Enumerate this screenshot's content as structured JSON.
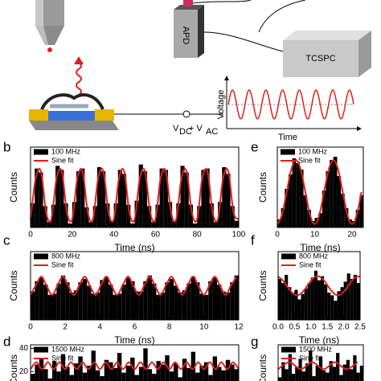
{
  "schematic": {
    "detector": "APD",
    "counter": "TCSPC",
    "inset_ylabel": "Voltage",
    "inset_xlabel": "Time",
    "source_label": [
      "V",
      "DC",
      "+ V",
      "AC"
    ]
  },
  "chart_data": [
    {
      "type": "bar",
      "panel": "b",
      "xlabel": "Time (ns)",
      "ylabel": "Counts",
      "xlim": [
        0,
        100
      ],
      "ylim": [
        0,
        60
      ],
      "xticks": [
        0,
        20,
        40,
        60,
        80,
        100
      ],
      "series": [
        {
          "name": "100 MHz",
          "type": "bar",
          "color": "#000000",
          "x": [
            1,
            3,
            5,
            7,
            9,
            11,
            13,
            15,
            17,
            19,
            21,
            23,
            25,
            27,
            29,
            31,
            33,
            35,
            37,
            39,
            41,
            43,
            45,
            47,
            49,
            51,
            53,
            55,
            57,
            59,
            61,
            63,
            65,
            67,
            69,
            71,
            73,
            75,
            77,
            79,
            81,
            83,
            85,
            87,
            89,
            91,
            93,
            95,
            97,
            99
          ],
          "values": [
            18,
            44,
            41,
            16,
            4,
            17,
            46,
            43,
            18,
            3,
            19,
            42,
            44,
            15,
            4,
            16,
            45,
            42,
            18,
            5,
            18,
            43,
            40,
            17,
            3,
            20,
            47,
            42,
            16,
            4,
            17,
            44,
            43,
            19,
            5,
            18,
            46,
            41,
            17,
            3,
            16,
            43,
            44,
            18,
            4,
            19,
            45,
            40,
            16,
            5
          ]
        },
        {
          "name": "Sine fit",
          "type": "line",
          "color": "#e0201c",
          "x": [
            0,
            2.5,
            5,
            7.5,
            10,
            12.5,
            15,
            17.5,
            20,
            22.5,
            25,
            27.5,
            30,
            32.5,
            35,
            37.5,
            40,
            42.5,
            45,
            47.5,
            50,
            52.5,
            55,
            57.5,
            60,
            62.5,
            65,
            67.5,
            70,
            72.5,
            75,
            77.5,
            80,
            82.5,
            85,
            87.5,
            90,
            92.5,
            95,
            97.5,
            100
          ],
          "values": [
            6.2,
            36.9,
            41.8,
            11.1,
            6.2,
            36.9,
            41.8,
            11.1,
            6.2,
            36.9,
            41.8,
            11.1,
            6.2,
            36.9,
            41.8,
            11.1,
            6.2,
            36.9,
            41.8,
            11.1,
            6.2,
            36.9,
            41.8,
            11.1,
            6.2,
            36.9,
            41.8,
            11.1,
            6.2,
            36.9,
            41.8,
            11.1,
            6.2,
            36.9,
            41.8,
            11.1,
            6.2,
            36.9,
            41.8,
            11.1,
            6.2
          ]
        }
      ]
    },
    {
      "type": "bar",
      "panel": "c",
      "xlabel": "Time (ns)",
      "ylabel": "Counts",
      "xlim": [
        0,
        12
      ],
      "ylim": [
        0,
        60
      ],
      "xticks": [
        0,
        2,
        4,
        6,
        8,
        10,
        12
      ],
      "series": [
        {
          "name": "800 MHz",
          "type": "bar",
          "color": "#000000",
          "x": [
            0.125,
            0.375,
            0.625,
            0.875,
            1.125,
            1.375,
            1.625,
            1.875,
            2.125,
            2.375,
            2.625,
            2.875,
            3.125,
            3.375,
            3.625,
            3.875,
            4.125,
            4.375,
            4.625,
            4.875,
            5.125,
            5.375,
            5.625,
            5.875,
            6.125,
            6.375,
            6.625,
            6.875,
            7.125,
            7.375,
            7.625,
            7.875,
            8.125,
            8.375,
            8.625,
            8.875,
            9.125,
            9.375,
            9.625,
            9.875,
            10.125,
            10.375,
            10.625,
            10.875,
            11.125,
            11.375,
            11.625,
            11.875
          ],
          "values": [
            25,
            34,
            37,
            31,
            22,
            23,
            32,
            39,
            33,
            24,
            26,
            33,
            36,
            30,
            23,
            24,
            35,
            38,
            31,
            22,
            23,
            31,
            37,
            34,
            25,
            25,
            34,
            39,
            32,
            22,
            24,
            33,
            36,
            30,
            24,
            26,
            32,
            38,
            33,
            23,
            22,
            34,
            37,
            31,
            25,
            24,
            33,
            39
          ]
        },
        {
          "name": "Sine fit",
          "type": "line",
          "color": "#e0201c",
          "x": [
            0,
            0.3125,
            0.625,
            0.9375,
            1.25,
            1.5625,
            1.875,
            2.1875,
            2.5,
            2.8125,
            3.125,
            3.4375,
            3.75,
            4.0625,
            4.375,
            4.6875,
            5,
            5.3125,
            5.625,
            5.9375,
            6.25,
            6.5625,
            6.875,
            7.1875,
            7.5,
            7.8125,
            8.125,
            8.4375,
            8.75,
            9.0625,
            9.375,
            9.6875,
            10,
            10.3125,
            10.625,
            10.9375,
            11.25,
            11.5625,
            11.875
          ],
          "values": [
            22,
            30.5,
            38,
            29.5,
            22,
            30.5,
            38,
            29.5,
            22,
            30.5,
            38,
            29.5,
            22,
            30.5,
            38,
            29.5,
            22,
            30.5,
            38,
            29.5,
            22,
            30.5,
            38,
            29.5,
            22,
            30.5,
            38,
            29.5,
            22,
            30.5,
            38,
            29.5,
            22,
            30.5,
            38,
            29.5,
            22,
            30.5,
            38
          ]
        }
      ]
    },
    {
      "type": "bar",
      "panel": "d",
      "ylabel": "Counts",
      "xlim": [
        0,
        12
      ],
      "ylim": [
        0,
        43
      ],
      "yticks": [
        20,
        40
      ],
      "series": [
        {
          "name": "1500 MHz",
          "type": "bar",
          "color": "#000000",
          "x": [
            0.125,
            0.375,
            0.625,
            0.875,
            1.125,
            1.375,
            1.625,
            1.875,
            2.125,
            2.375,
            2.625,
            2.875,
            3.125,
            3.375,
            3.625,
            3.875,
            4.125,
            4.375,
            4.625,
            4.875,
            5.125,
            5.375,
            5.625,
            5.875,
            6.125,
            6.375,
            6.625,
            6.875,
            7.125,
            7.375,
            7.625,
            7.875,
            8.125,
            8.375,
            8.625,
            8.875,
            9.125,
            9.375,
            9.625,
            9.875,
            10.125,
            10.375,
            10.625,
            10.875,
            11.125,
            11.375,
            11.625,
            11.875
          ],
          "values": [
            18,
            26,
            31,
            22,
            14,
            29,
            20,
            35,
            24,
            17,
            27,
            33,
            19,
            25,
            38,
            21,
            16,
            30,
            28,
            23,
            36,
            19,
            25,
            32,
            17,
            24,
            40,
            22,
            18,
            29,
            26,
            34,
            20,
            27,
            15,
            31,
            23,
            37,
            19,
            25,
            28,
            17,
            33,
            24,
            21,
            30,
            26,
            22
          ]
        },
        {
          "name": "Sine fit",
          "type": "line",
          "color": "#e0201c",
          "x": [
            0,
            0.3333,
            0.6667,
            1,
            1.3333,
            1.6667,
            2,
            2.3333,
            2.6667,
            3,
            3.3333,
            3.6667,
            4,
            4.3333,
            4.6667,
            5,
            5.3333,
            5.6667,
            6,
            6.3333,
            6.6667,
            7,
            7.3333,
            7.6667,
            8,
            8.3333,
            8.6667,
            9,
            9.3333,
            9.6667,
            10,
            10.3333,
            10.6667,
            11,
            11.3333,
            11.6667,
            12
          ],
          "values": [
            22,
            28,
            22,
            28,
            22,
            28,
            22,
            28,
            22,
            28,
            22,
            28,
            22,
            28,
            22,
            28,
            22,
            28,
            22,
            28,
            22,
            28,
            22,
            28,
            22,
            28,
            22,
            28,
            22,
            28,
            22,
            28,
            22,
            28,
            22,
            28,
            22
          ]
        }
      ]
    },
    {
      "type": "bar",
      "panel": "e",
      "xlabel": "Time (ns)",
      "ylabel": "Counts",
      "xlim": [
        0,
        23
      ],
      "ylim": [
        0,
        50
      ],
      "xticks": [
        0,
        10,
        20
      ],
      "series": [
        {
          "name": "100 MHz",
          "type": "bar",
          "color": "#000000",
          "x": [
            0.5,
            1.5,
            2.5,
            3.5,
            4.5,
            5.5,
            6.5,
            7.5,
            8.5,
            9.5,
            10.5,
            11.5,
            12.5,
            13.5,
            14.5,
            15.5,
            16.5,
            17.5,
            18.5,
            19.5,
            20.5,
            21.5,
            22.5
          ],
          "values": [
            5,
            12,
            24,
            33,
            43,
            40,
            36,
            20,
            11,
            4,
            6,
            9,
            23,
            35,
            42,
            44,
            32,
            21,
            12,
            5,
            4,
            11,
            20
          ]
        },
        {
          "name": "Sine fit",
          "type": "line",
          "color": "#e0201c",
          "x": [
            0,
            1.25,
            2.5,
            3.75,
            5,
            6.25,
            7.5,
            8.75,
            10,
            11.25,
            12.5,
            13.75,
            15,
            16.25,
            17.5,
            18.75,
            20,
            21.25,
            22.5
          ],
          "values": [
            2,
            7.9,
            22,
            36.1,
            42,
            36.1,
            22,
            7.9,
            2,
            7.9,
            22,
            36.1,
            42,
            36.1,
            22,
            7.9,
            2,
            7.9,
            22
          ]
        }
      ]
    },
    {
      "type": "bar",
      "panel": "f",
      "xlabel": "Time (ns)",
      "ylabel": "Counts",
      "xlim": [
        0,
        2.5
      ],
      "ylim": [
        0,
        50
      ],
      "xticks": [
        {
          "value": 0,
          "label": "0.0"
        },
        0.5,
        {
          "value": 1,
          "label": "1.0"
        },
        1.5,
        {
          "value": 2,
          "label": "2.0"
        },
        2.5
      ],
      "series": [
        {
          "name": "800 MHz",
          "type": "bar",
          "color": "#000000",
          "x": [
            0.05,
            0.15,
            0.25,
            0.35,
            0.45,
            0.55,
            0.65,
            0.75,
            0.85,
            0.95,
            1.05,
            1.15,
            1.25,
            1.35,
            1.45,
            1.55,
            1.65,
            1.75,
            1.85,
            1.95,
            2.05,
            2.15,
            2.25,
            2.35,
            2.45
          ],
          "values": [
            30,
            27,
            33,
            24,
            20,
            22,
            15,
            19,
            23,
            27,
            31,
            36,
            29,
            32,
            26,
            20,
            18,
            14,
            21,
            24,
            28,
            34,
            30,
            33,
            27
          ]
        },
        {
          "name": "Sine fit",
          "type": "line",
          "color": "#e0201c",
          "x": [
            0,
            0.15625,
            0.3125,
            0.46875,
            0.625,
            0.78125,
            0.9375,
            1.09375,
            1.25,
            1.40625,
            1.5625,
            1.71875,
            1.875,
            2.03125,
            2.1875,
            2.34375,
            2.5
          ],
          "values": [
            31.8,
            28.6,
            23.3,
            19,
            18.2,
            21.4,
            26.7,
            31,
            31.8,
            28.6,
            23.3,
            19,
            18.2,
            21.4,
            26.7,
            31,
            31.8
          ]
        }
      ]
    },
    {
      "type": "bar",
      "panel": "g",
      "ylabel": "Counts",
      "xlim": [
        0,
        2.5
      ],
      "ylim": [
        0,
        43
      ],
      "series": [
        {
          "name": "1500 MHz",
          "type": "bar",
          "color": "#000000",
          "x": [
            0.05,
            0.15,
            0.25,
            0.35,
            0.45,
            0.55,
            0.65,
            0.75,
            0.85,
            0.95,
            1.05,
            1.15,
            1.25,
            1.35,
            1.45,
            1.55,
            1.65,
            1.75,
            1.85,
            1.95,
            2.05,
            2.15,
            2.25,
            2.35,
            2.45
          ],
          "values": [
            15,
            28,
            22,
            35,
            18,
            24,
            31,
            20,
            27,
            38,
            16,
            25,
            33,
            21,
            19,
            29,
            24,
            36,
            17,
            26,
            30,
            22,
            34,
            19,
            25
          ]
        },
        {
          "name": "Sine fit",
          "type": "line",
          "color": "#e0201c",
          "x": [
            0,
            0.3333,
            0.6667,
            1,
            1.3333,
            1.6667,
            2,
            2.3333
          ],
          "values": [
            22,
            28,
            22,
            28,
            22,
            28,
            22,
            28
          ]
        }
      ]
    }
  ]
}
